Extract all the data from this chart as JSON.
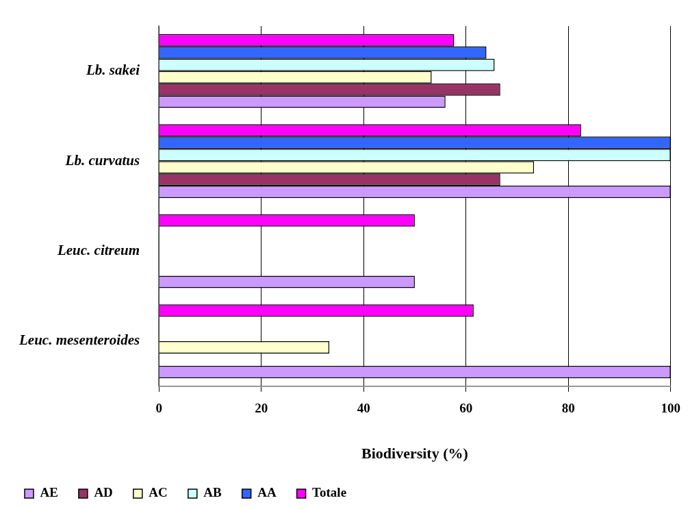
{
  "chart_data": {
    "type": "bar",
    "orientation": "horizontal",
    "xlabel": "Biodiversity (%)",
    "categories": [
      "Lb. sakei",
      "Lb. curvatus",
      "Leuc. citreum",
      "Leuc. mesenteroides"
    ],
    "series": [
      {
        "name": "AE",
        "color": "#cc99ff",
        "values": [
          56.0,
          100,
          50,
          100
        ]
      },
      {
        "name": "AD",
        "color": "#993366",
        "values": [
          66.7,
          66.7,
          null,
          null
        ]
      },
      {
        "name": "AC",
        "color": "#ffffcc",
        "values": [
          53.3,
          73.3,
          null,
          33.3
        ]
      },
      {
        "name": "AB",
        "color": "#ccffff",
        "values": [
          65.6,
          100,
          null,
          null
        ]
      },
      {
        "name": "AA",
        "color": "#3366ff",
        "values": [
          64.0,
          100,
          null,
          null
        ]
      },
      {
        "name": "Totale",
        "color": "#ff00ff",
        "values": [
          57.7,
          82.5,
          50,
          61.5
        ]
      }
    ],
    "xlim": [
      0,
      100
    ],
    "xticks": [
      0,
      20,
      40,
      60,
      80,
      100
    ],
    "grid": "x",
    "legend": "bottom left"
  }
}
